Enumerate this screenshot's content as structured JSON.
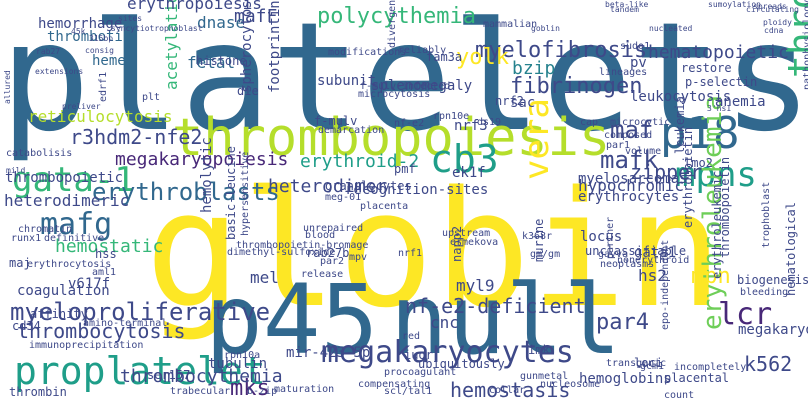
{
  "palette": {
    "yellow": "#fde725",
    "lime": "#b5de2b",
    "green": "#6ece58",
    "teal_green": "#35b779",
    "teal": "#1f9e89",
    "blue_teal": "#26828e",
    "slate_blue": "#31688e",
    "indigo": "#3e4989",
    "purple": "#482878",
    "dark_purple": "#440154"
  },
  "words": [
    "platelets",
    "globin",
    "p45",
    "null",
    "thrombopoiesis",
    "p18",
    "gata-1",
    "cb3",
    "mpns",
    "vera",
    "mafg",
    "erythroblasts",
    "proplatelet",
    "megakaryocytes",
    "thrombocytopenia",
    "erythroleukemia",
    "myeloproliferative",
    "thrombocytosis",
    "polycythemia",
    "myelofibrosis",
    "hematopoietic",
    "maf",
    "mafk",
    "lcr",
    "par4",
    "mpn",
    "nf-e2-deficient",
    "mks",
    "fibrinogen",
    "yolk",
    "bzip",
    "reticulocytosis",
    "r3hdm2-nfe2",
    "megakaryopoiesis",
    "erythroid-2",
    "heterodimer",
    "hemostatic",
    "thrombocythemia",
    "hemostasis",
    "hemoglobins",
    "k562",
    "mel",
    "cnc",
    "mafF",
    "fetal",
    "dnase",
    "acetylation",
    "erythropoiesis",
    "hemorrhage",
    "thrombotic",
    "heme",
    "sac",
    "pv",
    "anemia",
    "zipper",
    "hypochromic",
    "erythrocytes",
    "gata1",
    "hs2",
    "locus",
    "myl9",
    "mir-423-5p",
    "tubulin",
    "v617f",
    "coagulation",
    "cd34",
    "thrombin",
    "trabecular",
    "b-zip",
    "maturation",
    "rpn10a",
    "scl/tal1",
    "collar",
    "compensating",
    "procoagulant",
    "ubiquitously",
    "iugr",
    "red",
    "blood",
    "par2",
    "release",
    "rab27b",
    "heterodimeric",
    "thrombopoietic",
    "runx1",
    "definitive",
    "hss",
    "aml1",
    "maj",
    "erythrocytosis",
    "affinity",
    "amino-terminal",
    "immunoprecipitation",
    "hemolytic",
    "spherocytosis",
    "footprinting",
    "demarcation",
    "histone",
    "die",
    "subunit",
    "splenomegaly",
    "f-mulv",
    "fam3a",
    "ek1f",
    "nrf3",
    "nrf2",
    "lineages",
    "leukocytosis",
    "p-selectin",
    "restore",
    "biogenesis",
    "bleeding",
    "megakaryocytic",
    "hematological",
    "nucleosome",
    "gunmetal",
    "loci",
    "transgenic",
    "incompletely",
    "placental",
    "count",
    "gcm1",
    "lmo2",
    "leukemia",
    "composed",
    "par1",
    "volume",
    "cap",
    "microcytic",
    "unclassifiable",
    "granulocytes",
    "meg-01",
    "placenta",
    "pmf",
    "recognition-sites",
    "myelosarcomas",
    "upstream",
    "ermekova",
    "k368r",
    "gm/gm",
    "gavva",
    "neoplasms",
    "nonerythroid",
    "thrombopoietin",
    "erythroleukemic",
    "erythropoietin",
    "hypersensitive",
    "basic-leucine",
    "murine",
    "napp2",
    "imk",
    "nrf1",
    "mpv",
    "unrepaired",
    "thrombopoietin-bromage",
    "dimethyl-sulfoxide",
    "trophoblast",
    "partner",
    "epo-independent",
    "ser157",
    "edrf1",
    "sites",
    "syncytiotrophoblast",
    "plt",
    "chromatin",
    "catabolisis",
    "mild",
    "allured",
    "45k",
    "315bp",
    "consig",
    "rab27",
    "extensions",
    "preliver",
    "beta-like",
    "tandem",
    "sumoylation",
    "circulating",
    "spreads",
    "mammalian",
    "goblin",
    "nucleated",
    "cdna",
    "ploidy",
    "reliably",
    "divergent",
    "modifications",
    "ds19",
    "pathophysiology",
    "3'hs1",
    "sudo1",
    "rpn10e",
    "microcytosis",
    "f-mulv-infected",
    "nf-e2"
  ]
}
